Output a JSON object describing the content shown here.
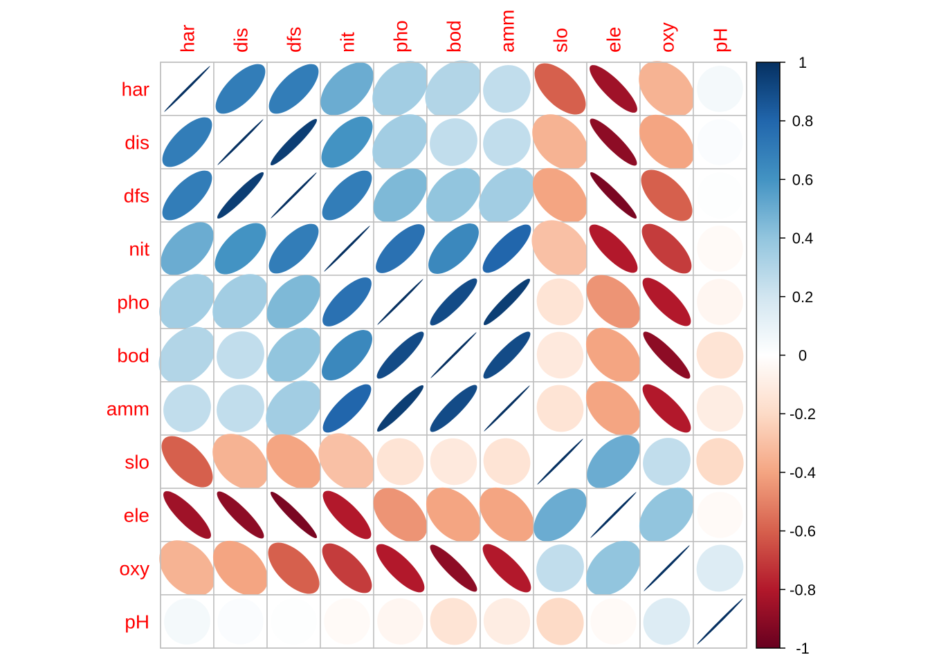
{
  "chart_data": {
    "type": "heatmap",
    "variables": [
      "har",
      "dis",
      "dfs",
      "nit",
      "pho",
      "bod",
      "amm",
      "slo",
      "ele",
      "oxy",
      "pH"
    ],
    "matrix": [
      [
        1.0,
        0.7,
        0.7,
        0.5,
        0.35,
        0.3,
        0.25,
        -0.6,
        -0.85,
        -0.35,
        0.05
      ],
      [
        0.7,
        1.0,
        0.95,
        0.6,
        0.35,
        0.25,
        0.25,
        -0.35,
        -0.9,
        -0.4,
        0.02
      ],
      [
        0.7,
        0.95,
        1.0,
        0.7,
        0.45,
        0.4,
        0.35,
        -0.4,
        -0.95,
        -0.6,
        0.01
      ],
      [
        0.5,
        0.6,
        0.7,
        1.0,
        0.75,
        0.65,
        0.8,
        -0.3,
        -0.8,
        -0.7,
        -0.03
      ],
      [
        0.35,
        0.35,
        0.45,
        0.75,
        1.0,
        0.9,
        0.95,
        -0.15,
        -0.45,
        -0.8,
        -0.05
      ],
      [
        0.3,
        0.25,
        0.4,
        0.65,
        0.9,
        1.0,
        0.9,
        -0.12,
        -0.4,
        -0.9,
        -0.15
      ],
      [
        0.25,
        0.25,
        0.35,
        0.8,
        0.95,
        0.9,
        1.0,
        -0.15,
        -0.4,
        -0.8,
        -0.1
      ],
      [
        -0.6,
        -0.35,
        -0.4,
        -0.3,
        -0.15,
        -0.12,
        -0.15,
        1.0,
        0.5,
        0.25,
        -0.2
      ],
      [
        -0.85,
        -0.9,
        -0.95,
        -0.8,
        -0.45,
        -0.4,
        -0.4,
        0.5,
        1.0,
        0.4,
        -0.03
      ],
      [
        -0.35,
        -0.4,
        -0.6,
        -0.7,
        -0.8,
        -0.9,
        -0.8,
        0.25,
        0.4,
        1.0,
        0.15
      ],
      [
        0.05,
        0.02,
        0.01,
        -0.03,
        -0.05,
        -0.15,
        -0.1,
        -0.2,
        -0.03,
        0.15,
        1.0
      ]
    ],
    "colorbar": {
      "min": -1,
      "max": 1,
      "ticks": [
        "1",
        "0.8",
        "0.6",
        "0.4",
        "0.2",
        "0",
        "-0.2",
        "-0.4",
        "-0.6",
        "-0.8",
        "-1"
      ]
    },
    "glyph": "ellipse",
    "label_color": "#FF0000",
    "grid_color": "#BEBEBE",
    "palette": [
      "#67001F",
      "#B2182B",
      "#D6604D",
      "#F4A582",
      "#FDDBC7",
      "#FFFFFF",
      "#D1E5F0",
      "#92C5DE",
      "#4393C3",
      "#2166AC",
      "#053061"
    ]
  }
}
